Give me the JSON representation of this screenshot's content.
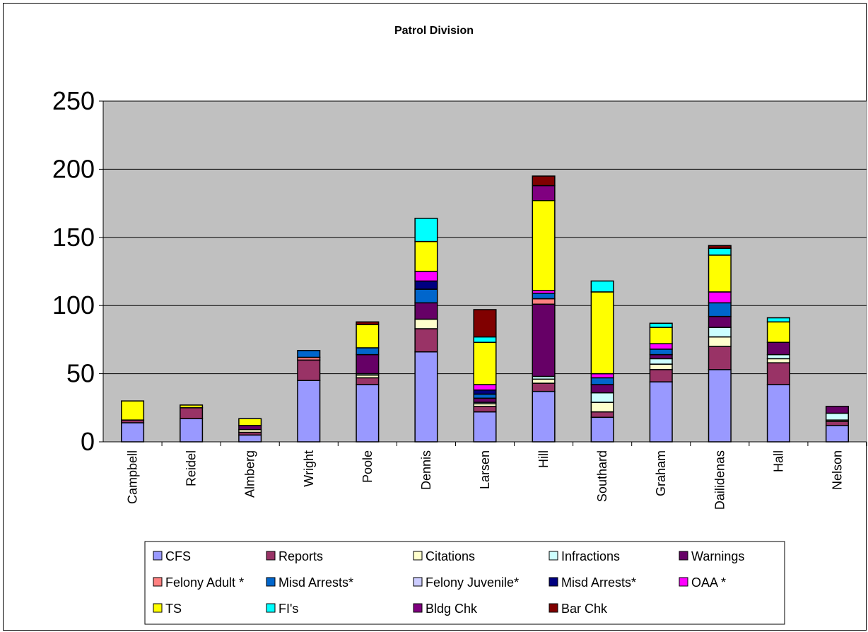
{
  "chart_data": {
    "type": "bar",
    "stacked": true,
    "title": "Patrol Division",
    "xlabel": "",
    "ylabel": "",
    "ylim": [
      0,
      250
    ],
    "yticks": [
      0,
      50,
      100,
      150,
      200,
      250
    ],
    "grid": true,
    "legend_position": "bottom",
    "plot_background": "#C0C0C0",
    "categories": [
      "Campbell",
      "Reidel",
      "Almberg",
      "Wright",
      "Poole",
      "Dennis",
      "Larsen",
      "Hill",
      "Southard",
      "Graham",
      "Dailidenas",
      "Hall",
      "Nelson"
    ],
    "series": [
      {
        "name": "CFS",
        "color": "#9999FF",
        "values": [
          14,
          17,
          5,
          45,
          42,
          66,
          22,
          37,
          18,
          44,
          53,
          42,
          12
        ]
      },
      {
        "name": "Reports",
        "color": "#993366",
        "values": [
          2,
          8,
          2,
          15,
          5,
          17,
          4,
          6,
          4,
          9,
          17,
          16,
          3
        ]
      },
      {
        "name": "Citations",
        "color": "#FFFFCC",
        "values": [
          0,
          0,
          2,
          0,
          2,
          7,
          2,
          3,
          7,
          4,
          7,
          3,
          1
        ]
      },
      {
        "name": "Infractions",
        "color": "#CCFFFF",
        "values": [
          0,
          0,
          0,
          0,
          1,
          0,
          1,
          2,
          7,
          4,
          7,
          3,
          5
        ]
      },
      {
        "name": "Warnings",
        "color": "#660066",
        "values": [
          0,
          0,
          3,
          0,
          14,
          12,
          3,
          53,
          6,
          3,
          8,
          9,
          5
        ]
      },
      {
        "name": "Felony Adult *",
        "color": "#FF8080",
        "values": [
          0,
          0,
          0,
          2,
          0,
          0,
          0,
          4,
          0,
          0,
          0,
          0,
          0
        ]
      },
      {
        "name": "Misd Arrests*",
        "color": "#0066CC",
        "values": [
          0,
          0,
          0,
          5,
          5,
          10,
          3,
          4,
          5,
          4,
          10,
          0,
          0
        ]
      },
      {
        "name": "Felony Juvenile*",
        "color": "#CCCCFF",
        "values": [
          0,
          0,
          0,
          0,
          0,
          0,
          0,
          0,
          0,
          0,
          0,
          0,
          0
        ]
      },
      {
        "name": "Misd Arrests*",
        "color": "#000080",
        "values": [
          0,
          0,
          0,
          0,
          0,
          6,
          3,
          0,
          0,
          0,
          0,
          0,
          0
        ]
      },
      {
        "name": "OAA *",
        "color": "#FF00FF",
        "values": [
          0,
          0,
          0,
          0,
          0,
          7,
          4,
          2,
          3,
          4,
          8,
          0,
          0
        ]
      },
      {
        "name": "TS",
        "color": "#FFFF00",
        "values": [
          14,
          2,
          5,
          0,
          17,
          22,
          31,
          66,
          60,
          12,
          27,
          15,
          0
        ]
      },
      {
        "name": "FI's",
        "color": "#00FFFF",
        "values": [
          0,
          0,
          0,
          0,
          0,
          17,
          4,
          0,
          8,
          3,
          5,
          3,
          0
        ]
      },
      {
        "name": "Bldg Chk",
        "color": "#800080",
        "values": [
          0,
          0,
          0,
          0,
          0,
          0,
          0,
          11,
          0,
          0,
          0,
          0,
          0
        ]
      },
      {
        "name": "Bar Chk",
        "color": "#800000",
        "values": [
          0,
          0,
          0,
          0,
          2,
          0,
          20,
          7,
          0,
          0,
          2,
          0,
          0
        ]
      }
    ]
  }
}
